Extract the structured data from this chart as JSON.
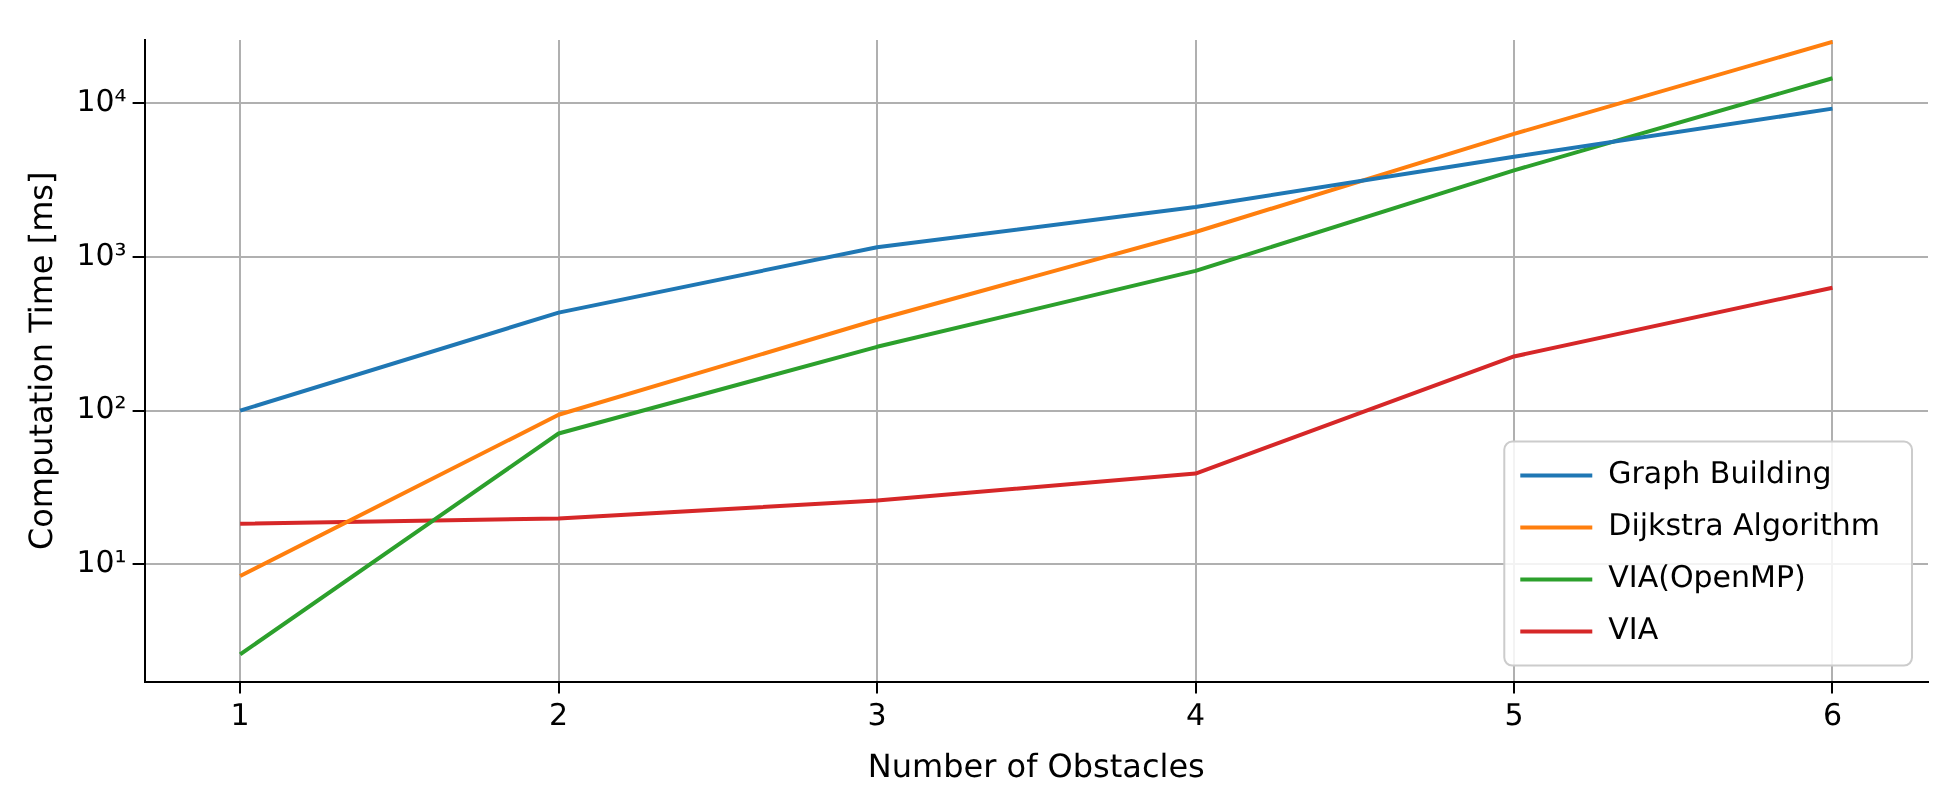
{
  "chart_data": {
    "type": "line",
    "xlabel": "Number of Obstacles",
    "ylabel": "Computation Time [ms]",
    "x": [
      1,
      2,
      3,
      4,
      5,
      6
    ],
    "xlim": [
      0.7,
      6.3
    ],
    "xticks": [
      1,
      2,
      3,
      4,
      5,
      6
    ],
    "log": "y",
    "ylim": [
      1.73,
      25700
    ],
    "yticks": [
      {
        "value": 10,
        "label": "10¹"
      },
      {
        "value": 100,
        "label": "10²"
      },
      {
        "value": 1000,
        "label": "10³"
      },
      {
        "value": 10000,
        "label": "10⁴"
      }
    ],
    "grid": true,
    "legend": "bottom right",
    "line_style": "solid",
    "marker": "none",
    "series": [
      {
        "name": "Graph Building",
        "color": "#1f77b4",
        "values": [
          100,
          434,
          1155,
          2110,
          4470,
          9200
        ]
      },
      {
        "name": "Dijkstra Algorithm",
        "color": "#ff7f0e",
        "values": [
          8.4,
          94,
          390,
          1450,
          6300,
          25000
        ]
      },
      {
        "name": "VIA(OpenMP)",
        "color": "#2ca02c",
        "values": [
          2.6,
          71,
          260,
          810,
          3650,
          14500
        ]
      },
      {
        "name": "VIA",
        "color": "#d62728",
        "values": [
          18.4,
          19.9,
          26,
          39,
          225,
          630
        ]
      }
    ]
  }
}
